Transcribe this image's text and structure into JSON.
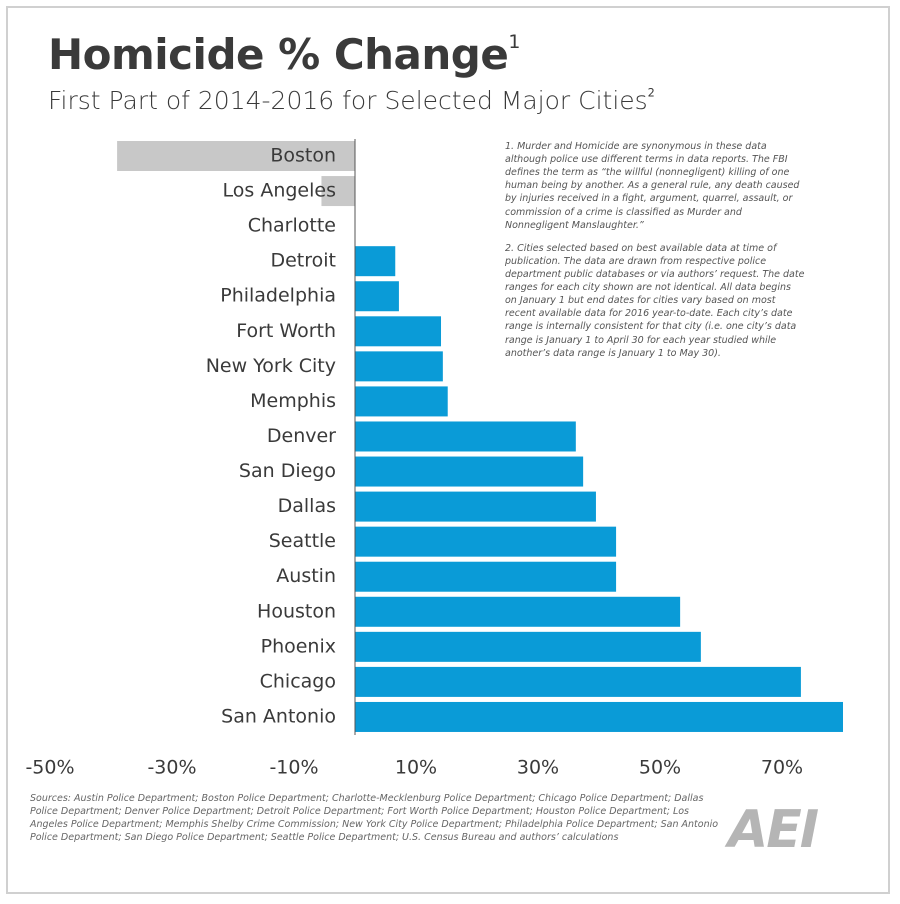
{
  "chart_data": {
    "type": "hbar",
    "title": "Homicide % Change",
    "title_note": "1",
    "subtitle": "First Part of 2014-2016 for Selected Major Cities",
    "subtitle_note": "2",
    "categories": [
      "Boston",
      "Los Angeles",
      "Charlotte",
      "Detroit",
      "Philadelphia",
      "Fort Worth",
      "New York City",
      "Memphis",
      "Denver",
      "San Diego",
      "Dallas",
      "Seattle",
      "Austin",
      "Houston",
      "Phoenix",
      "Chicago",
      "San Antonio"
    ],
    "values": [
      -39,
      -5.5,
      0,
      6.6,
      7.2,
      14.1,
      14.4,
      15.2,
      36.2,
      37.4,
      39.5,
      42.8,
      42.8,
      53.3,
      56.7,
      73.1,
      80
    ],
    "color": "#0a9bd7",
    "negative_color": "#c8c8c8",
    "xlim": [
      -50,
      80
    ],
    "xticks": [
      {
        "value": -50,
        "label": "-50%"
      },
      {
        "value": -30,
        "label": "-30%"
      },
      {
        "value": -10,
        "label": "-10%"
      },
      {
        "value": 10,
        "label": "10%"
      },
      {
        "value": 30,
        "label": "30%"
      },
      {
        "value": 50,
        "label": "50%"
      },
      {
        "value": 70,
        "label": "70%"
      }
    ],
    "notes": [
      "1. Murder and Homicide are synonymous in these data although police use different terms in data reports. The FBI defines the term as “the willful (nonnegligent) killing of one human being by another. As a general rule, any death caused by injuries received in a fight, argument, quarrel, assault, or commission of a crime is classified as Murder and Nonnegligent Manslaughter.”",
      "2. Cities selected based on best available data at time of publication. The data are drawn from respective police department public databases or via authors’ request. The date ranges for each city shown are not identical. All data begins on January 1 but end dates for cities vary based on most recent available data for 2016 year-to-date. Each city’s date range is internally consistent for that city (i.e. one city’s data range is January 1 to April 30 for each year studied while another’s data range is January 1 to May 30)."
    ],
    "sources": "Sources: Austin Police Department; Boston Police Department; Charlotte-Mecklenburg Police Department; Chicago Police Department; Dallas Police Department; Denver Police Department; Detroit Police Department; Fort Worth Police Department; Houston Police Department; Los Angeles Police Department; Memphis Shelby Crime Commission; New York City Police Department; Philadelphia Police Department; San Antonio Police Department; San Diego Police Department; Seattle Police Department; U.S. Census Bureau and authors’ calculations",
    "logo": "AEI"
  }
}
